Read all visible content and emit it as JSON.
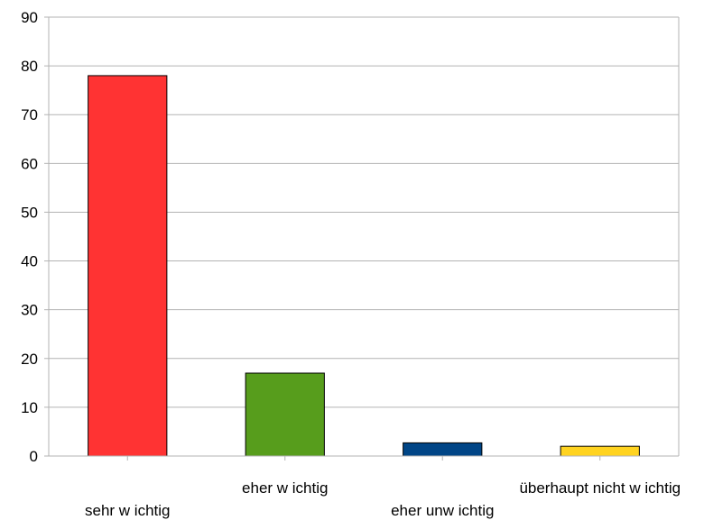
{
  "chart_data": {
    "type": "bar",
    "categories": [
      "sehr w ichtig",
      "eher w ichtig",
      "eher unw ichtig",
      "überhaupt nicht w ichtig"
    ],
    "values": [
      78,
      17,
      2.7,
      2
    ],
    "colors": [
      "#ff3333",
      "#579d1c",
      "#004586",
      "#ffd320"
    ],
    "title": "",
    "xlabel": "",
    "ylabel": "",
    "ylim": [
      0,
      90
    ],
    "yticks": [
      0,
      10,
      20,
      30,
      40,
      50,
      60,
      70,
      80,
      90
    ],
    "grid": true,
    "legend": "none"
  }
}
